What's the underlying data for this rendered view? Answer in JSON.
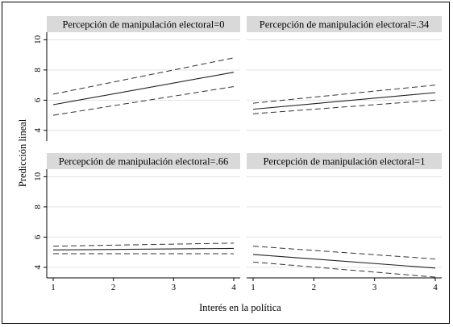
{
  "chart_data": {
    "type": "line",
    "xlabel": "Interés en la política",
    "ylabel": "Predicción lineal",
    "xlim": [
      1,
      4
    ],
    "ylim": [
      3.3,
      10.5
    ],
    "x_ticks": [
      1,
      2,
      3,
      4
    ],
    "y_ticks": [
      4,
      6,
      8,
      10
    ],
    "grid": true,
    "panels": [
      {
        "title": "Percepción de manipulación electoral=0",
        "x": [
          1,
          4
        ],
        "fit": [
          5.7,
          7.85
        ],
        "ci_upper": [
          6.4,
          8.8
        ],
        "ci_lower": [
          5.0,
          6.9
        ]
      },
      {
        "title": "Percepción de manipulación electoral=.34",
        "x": [
          1,
          4
        ],
        "fit": [
          5.4,
          6.5
        ],
        "ci_upper": [
          5.8,
          7.0
        ],
        "ci_lower": [
          5.1,
          6.0
        ]
      },
      {
        "title": "Percepción de manipulación electoral=.66",
        "x": [
          1,
          4
        ],
        "fit": [
          5.15,
          5.25
        ],
        "ci_upper": [
          5.4,
          5.6
        ],
        "ci_lower": [
          4.9,
          4.9
        ]
      },
      {
        "title": "Percepción de manipulación electoral=1",
        "x": [
          1,
          4
        ],
        "fit": [
          4.85,
          3.95
        ],
        "ci_upper": [
          5.4,
          4.55
        ],
        "ci_lower": [
          4.35,
          3.35
        ]
      }
    ]
  }
}
